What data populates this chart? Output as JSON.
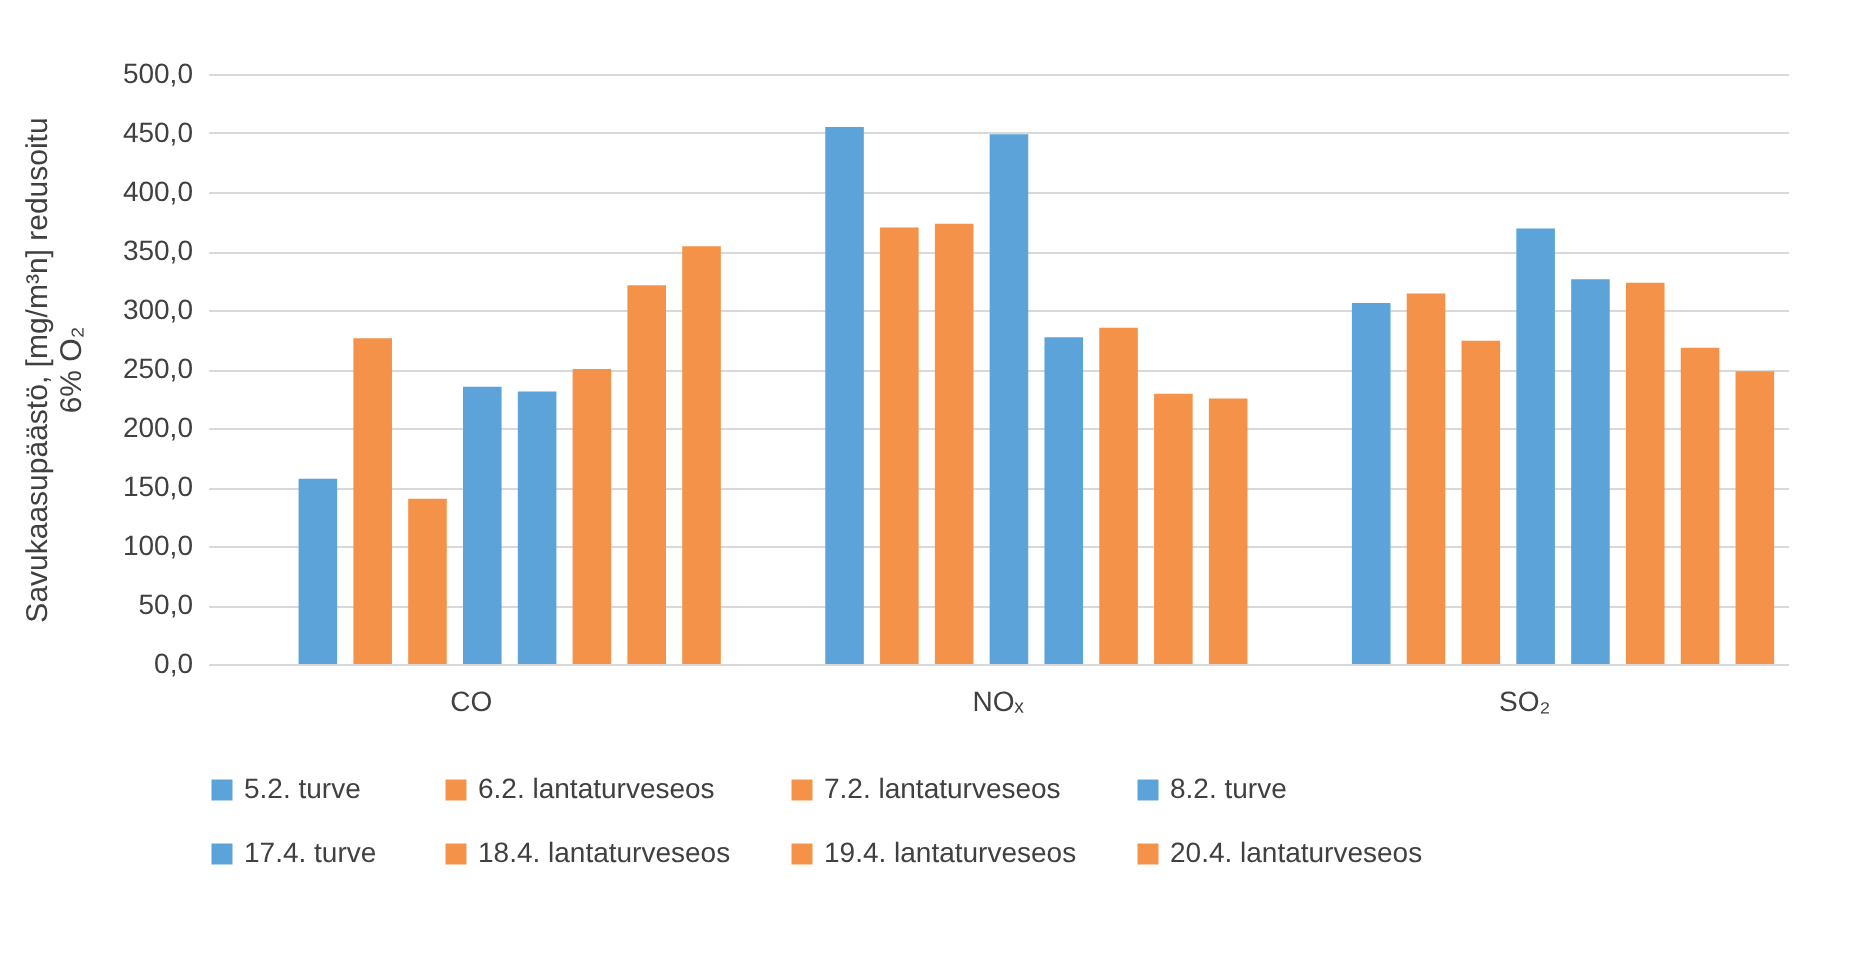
{
  "chart_data": {
    "type": "bar",
    "ylabel": "Savukaasupäästö, [mg/m³n] redusoitu\n6% O₂",
    "categories": [
      "CO",
      "NOₓ",
      "SO₂"
    ],
    "series": [
      {
        "name": "5.2. turve",
        "color": "#5ba3d9",
        "values": [
          157,
          455,
          306
        ]
      },
      {
        "name": "6.2. lantaturveseos",
        "color": "#f39248",
        "values": [
          276,
          370,
          314
        ]
      },
      {
        "name": "7.2. lantaturveseos",
        "color": "#f39248",
        "values": [
          140,
          373,
          274
        ]
      },
      {
        "name": "8.2. turve",
        "color": "#5ba3d9",
        "values": [
          235,
          449,
          369
        ]
      },
      {
        "name": "17.4.  turve",
        "color": "#5ba3d9",
        "values": [
          231,
          277,
          326
        ]
      },
      {
        "name": "18.4. lantaturveseos",
        "color": "#f39248",
        "values": [
          250,
          285,
          323
        ]
      },
      {
        "name": "19.4. lantaturveseos",
        "color": "#f39248",
        "values": [
          321,
          229,
          268
        ]
      },
      {
        "name": "20.4. lantaturveseos",
        "color": "#f39248",
        "values": [
          354,
          225,
          248
        ]
      }
    ],
    "ylim": [
      0,
      500
    ],
    "yticks": [
      {
        "value": 0,
        "label": "0,0"
      },
      {
        "value": 50,
        "label": "50,0"
      },
      {
        "value": 100,
        "label": "100,0"
      },
      {
        "value": 150,
        "label": "150,0"
      },
      {
        "value": 200,
        "label": "200,0"
      },
      {
        "value": 250,
        "label": "250,0"
      },
      {
        "value": 300,
        "label": "300,0"
      },
      {
        "value": 350,
        "label": "350,0"
      },
      {
        "value": 400,
        "label": "400,0"
      },
      {
        "value": 450,
        "label": "450,0"
      },
      {
        "value": 500,
        "label": "500,0"
      }
    ],
    "grid": "y",
    "legend": "bottom"
  }
}
